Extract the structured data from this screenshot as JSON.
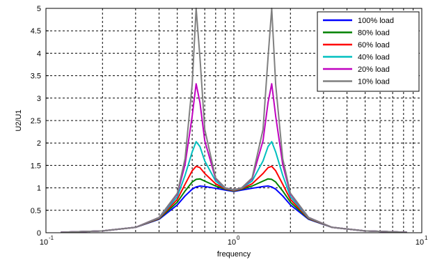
{
  "chart_data": {
    "type": "line",
    "xlabel": "frequency",
    "ylabel": "U2/U1",
    "xscale": "log",
    "xlim": [
      0.1,
      10
    ],
    "ylim": [
      0,
      5
    ],
    "yticks": [
      "0",
      "0.5",
      "1",
      "1.5",
      "2",
      "2.5",
      "3",
      "3.5",
      "4",
      "4.5",
      "5"
    ],
    "xticks": [
      {
        "base": "10",
        "exp": "-1"
      },
      {
        "base": "10",
        "exp": "0"
      },
      {
        "base": "10",
        "exp": "1"
      }
    ],
    "grid": true,
    "legend_position": "top-right",
    "x": [
      0.12,
      0.2,
      0.3,
      0.4,
      0.5,
      0.55,
      0.6,
      0.63,
      0.66,
      0.7,
      0.8,
      0.9,
      1.0,
      1.1,
      1.25,
      1.43,
      1.52,
      1.59,
      1.67,
      1.82,
      2.0,
      2.5,
      3.33,
      5.0,
      8.33
    ],
    "series": [
      {
        "name": "100% load",
        "color": "#0000ff",
        "values": [
          0.01,
          0.04,
          0.12,
          0.3,
          0.62,
          0.82,
          0.97,
          1.02,
          1.04,
          1.03,
          0.99,
          0.95,
          0.92,
          0.95,
          0.99,
          1.03,
          1.04,
          1.02,
          0.97,
          0.82,
          0.62,
          0.3,
          0.12,
          0.04,
          0.01
        ]
      },
      {
        "name": "80% load",
        "color": "#008000",
        "values": [
          0.01,
          0.04,
          0.12,
          0.31,
          0.68,
          0.93,
          1.13,
          1.19,
          1.2,
          1.15,
          1.04,
          0.97,
          0.93,
          0.97,
          1.04,
          1.15,
          1.2,
          1.19,
          1.13,
          0.93,
          0.68,
          0.31,
          0.12,
          0.04,
          0.01
        ]
      },
      {
        "name": "60% load",
        "color": "#ff0000",
        "values": [
          0.01,
          0.04,
          0.12,
          0.32,
          0.74,
          1.08,
          1.38,
          1.48,
          1.45,
          1.32,
          1.09,
          0.98,
          0.94,
          0.98,
          1.09,
          1.32,
          1.45,
          1.48,
          1.38,
          1.08,
          0.74,
          0.32,
          0.12,
          0.04,
          0.01
        ]
      },
      {
        "name": "40% load",
        "color": "#00bfbf",
        "values": [
          0.01,
          0.04,
          0.12,
          0.33,
          0.8,
          1.28,
          1.8,
          2.03,
          1.92,
          1.6,
          1.15,
          0.99,
          0.95,
          0.99,
          1.15,
          1.6,
          1.92,
          2.03,
          1.8,
          1.28,
          0.8,
          0.33,
          0.12,
          0.04,
          0.01
        ]
      },
      {
        "name": "20% load",
        "color": "#bf00bf",
        "values": [
          0.01,
          0.04,
          0.12,
          0.34,
          0.86,
          1.52,
          2.6,
          3.32,
          2.9,
          2.05,
          1.2,
          1.0,
          0.96,
          1.0,
          1.2,
          2.05,
          2.9,
          3.32,
          2.6,
          1.52,
          0.86,
          0.34,
          0.12,
          0.04,
          0.01
        ]
      },
      {
        "name": "10% load",
        "color": "#7f7f7f",
        "values": [
          0.01,
          0.04,
          0.12,
          0.34,
          0.88,
          1.65,
          3.3,
          5.0,
          3.9,
          2.3,
          1.22,
          1.0,
          0.96,
          1.0,
          1.22,
          2.3,
          3.9,
          5.0,
          3.3,
          1.65,
          0.88,
          0.34,
          0.12,
          0.04,
          0.01
        ]
      }
    ]
  }
}
